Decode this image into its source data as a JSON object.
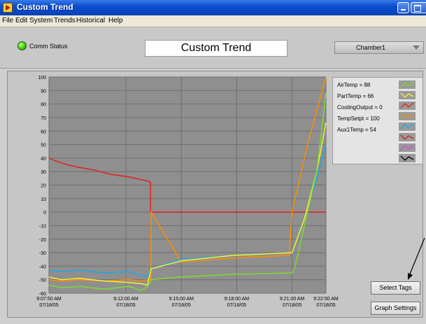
{
  "window": {
    "title": "Custom Trend"
  },
  "menu": [
    "File",
    "Edit",
    "System",
    "Trends",
    "Historical",
    "Help"
  ],
  "header": {
    "comm_status_label": "Comm Status",
    "page_title": "Custom Trend",
    "chamber_value": "Chamber1"
  },
  "buttons": {
    "select_tags": "Select Tags",
    "graph_settings": "Graph Settings"
  },
  "legend": [
    {
      "label": "AirTemp = 88",
      "color": "#7ddc2e"
    },
    {
      "label": "PartTemp = 66",
      "color": "#f2f23a"
    },
    {
      "label": "CoolingOutput = 0",
      "color": "#e02020"
    },
    {
      "label": "TempSetpt = 100",
      "color": "#ff8c00"
    },
    {
      "label": "Aux1Temp = 54",
      "color": "#19a8e8"
    },
    {
      "label": "",
      "color": "#d02020"
    },
    {
      "label": "",
      "color": "#e040e0"
    },
    {
      "label": "",
      "color": "#000000"
    }
  ],
  "chart_data": {
    "type": "line",
    "ylim": [
      -60,
      100
    ],
    "y_ticks": [
      100,
      90,
      80,
      70,
      60,
      50,
      40,
      30,
      20,
      10,
      0,
      -10,
      -20,
      -30,
      -40,
      -50,
      -60
    ],
    "x_ticks": [
      {
        "time": "9:07:50 AM",
        "date": "07/18/05",
        "t": 0
      },
      {
        "time": "9:12:00 AM",
        "date": "07/18/05",
        "t": 250
      },
      {
        "time": "9:15:00 AM",
        "date": "07/18/05",
        "t": 430
      },
      {
        "time": "9:18:00 AM",
        "date": "07/18/05",
        "t": 610
      },
      {
        "time": "9:21:00 AM",
        "date": "07/18/05",
        "t": 790
      },
      {
        "time": "9:22:50 AM",
        "date": "07/18/05",
        "t": 900
      }
    ],
    "xlim": [
      0,
      900
    ],
    "grid": true,
    "series": [
      {
        "name": "CoolingOutput",
        "color": "#e02020",
        "x": [
          0,
          20,
          60,
          100,
          150,
          200,
          260,
          300,
          320,
          330,
          330,
          600,
          790,
          900
        ],
        "y": [
          40,
          38,
          35,
          33,
          31,
          28,
          26,
          24,
          23,
          22,
          0,
          0,
          0,
          0
        ]
      },
      {
        "name": "TempSetpt",
        "color": "#ff8c00",
        "x": [
          0,
          40,
          100,
          180,
          260,
          300,
          325,
          331,
          332,
          430,
          600,
          780,
          790,
          840,
          900
        ],
        "y": [
          -50,
          -51,
          -50,
          -51,
          -50,
          -51,
          -50,
          -50,
          0,
          -37,
          -34,
          -32,
          0,
          50,
          100
        ]
      },
      {
        "name": "Aux1Temp",
        "color": "#19a8e8",
        "x": [
          0,
          40,
          100,
          180,
          260,
          300,
          320,
          332,
          430,
          600,
          790,
          830,
          870,
          900
        ],
        "y": [
          -43,
          -44,
          -43,
          -45,
          -44,
          -47,
          -48,
          -42,
          -35,
          -32,
          -30,
          -5,
          25,
          50
        ]
      },
      {
        "name": "PartTemp",
        "color": "#f2f23a",
        "x": [
          0,
          40,
          100,
          180,
          260,
          300,
          320,
          332,
          430,
          600,
          790,
          830,
          870,
          900
        ],
        "y": [
          -48,
          -50,
          -49,
          -51,
          -52,
          -53,
          -54,
          -42,
          -36,
          -32,
          -30,
          -5,
          30,
          66
        ]
      },
      {
        "name": "AirTemp",
        "color": "#7ddc2e",
        "x": [
          0,
          40,
          100,
          180,
          260,
          300,
          320,
          332,
          380,
          430,
          600,
          790,
          800,
          830,
          870,
          900
        ],
        "y": [
          -54,
          -56,
          -55,
          -57,
          -55,
          -58,
          -55,
          -50,
          -49,
          -48,
          -46,
          -45,
          -40,
          -10,
          30,
          88
        ]
      }
    ]
  }
}
